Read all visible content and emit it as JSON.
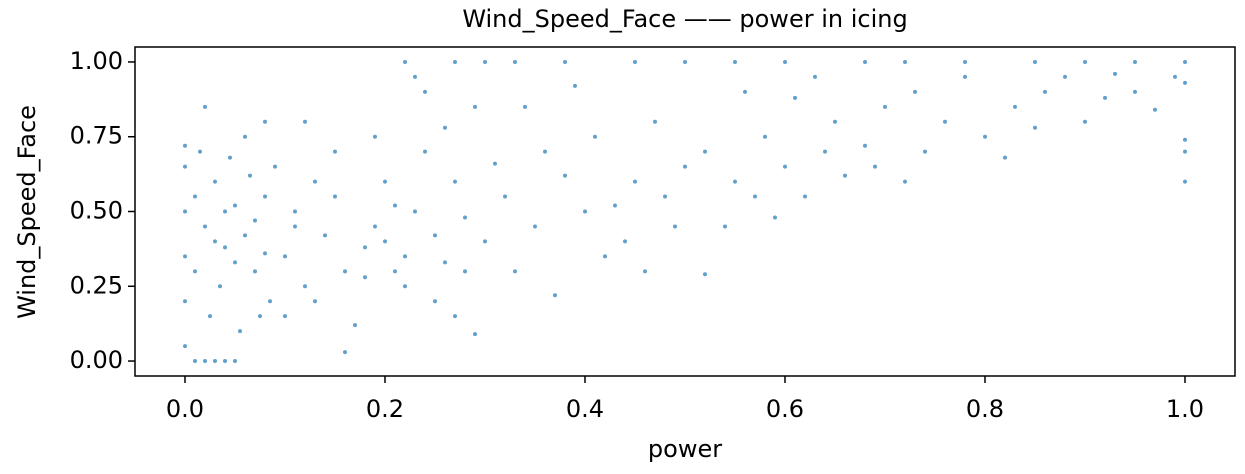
{
  "chart_data": {
    "type": "scatter",
    "title": "Wind_Speed_Face —— power in icing",
    "x_label": "power",
    "y_label": "Wind_Speed_Face",
    "color": "#1f77b4",
    "x": [
      0,
      0,
      0,
      0,
      0,
      0,
      0.01,
      0.02,
      0.03,
      0.04,
      0.05,
      0.01,
      0.02,
      0.03,
      0.04,
      0.05,
      0.06,
      0.07,
      0.08,
      0.085,
      0.015,
      0.025,
      0.035,
      0.045,
      0.055,
      0.065,
      0.075,
      0.08,
      0.02,
      0.06,
      0.01,
      0.03,
      0.05,
      0.07,
      0.04,
      0.08,
      0.1,
      0.11,
      0.12,
      0.13,
      0.1,
      0.14,
      0.15,
      0.12,
      0.16,
      0.09,
      0.11,
      0.13,
      0.15,
      0.17,
      0.16,
      0.18,
      0.2,
      0.22,
      0.19,
      0.21,
      0.23,
      0.25,
      0.2,
      0.24,
      0.22,
      0.26,
      0.28,
      0.18,
      0.27,
      0.29,
      0.23,
      0.26,
      0.3,
      0.21,
      0.25,
      0.27,
      0.29,
      0.19,
      0.24,
      0.28,
      0.32,
      0.35,
      0.38,
      0.4,
      0.33,
      0.36,
      0.42,
      0.45,
      0.48,
      0.34,
      0.37,
      0.41,
      0.44,
      0.47,
      0.5,
      0.39,
      0.46,
      0.43,
      0.31,
      0.49,
      0.52,
      0.52,
      0.55,
      0.58,
      0.6,
      0.62,
      0.65,
      0.68,
      0.7,
      0.72,
      0.56,
      0.63,
      0.66,
      0.74,
      0.54,
      0.59,
      0.61,
      0.69,
      0.73,
      0.57,
      0.64,
      0.76,
      0.8,
      0.83,
      0.86,
      0.9,
      0.78,
      0.82,
      0.88,
      0.92,
      0.95,
      0.97,
      0.85,
      0.93,
      0.99,
      1.0,
      1.0,
      1.0,
      1.0,
      0.27,
      0.3,
      0.33,
      0.45,
      0.5,
      0.55,
      0.6,
      0.68,
      0.72,
      0.78,
      0.85,
      0.9,
      0.95,
      1.0,
      0.22,
      0.38
    ],
    "values": [
      0.05,
      0.2,
      0.35,
      0.5,
      0.65,
      0.72,
      0,
      0,
      0,
      0,
      0,
      0.3,
      0.45,
      0.6,
      0.38,
      0.52,
      0.42,
      0.3,
      0.55,
      0.2,
      0.7,
      0.15,
      0.25,
      0.68,
      0.1,
      0.62,
      0.15,
      0.8,
      0.85,
      0.75,
      0.55,
      0.4,
      0.33,
      0.47,
      0.5,
      0.36,
      0.35,
      0.5,
      0.25,
      0.6,
      0.15,
      0.42,
      0.7,
      0.8,
      0.3,
      0.65,
      0.45,
      0.2,
      0.55,
      0.12,
      0.03,
      0.38,
      0.4,
      0.35,
      0.45,
      0.3,
      0.5,
      0.42,
      0.6,
      0.7,
      0.25,
      0.33,
      0.48,
      0.28,
      0.6,
      0.85,
      0.95,
      0.78,
      0.4,
      0.52,
      0.2,
      0.15,
      0.09,
      0.75,
      0.9,
      0.3,
      0.55,
      0.45,
      0.62,
      0.5,
      0.3,
      0.7,
      0.35,
      0.6,
      0.55,
      0.85,
      0.22,
      0.75,
      0.4,
      0.8,
      0.65,
      0.92,
      0.3,
      0.52,
      0.66,
      0.45,
      0.29,
      0.7,
      0.6,
      0.75,
      0.65,
      0.55,
      0.8,
      0.72,
      0.85,
      0.6,
      0.9,
      0.95,
      0.62,
      0.7,
      0.45,
      0.48,
      0.88,
      0.65,
      0.9,
      0.55,
      0.7,
      0.8,
      0.75,
      0.85,
      0.9,
      0.8,
      0.95,
      0.68,
      0.95,
      0.88,
      0.9,
      0.84,
      0.78,
      0.96,
      0.95,
      0.74,
      0.6,
      0.7,
      0.93,
      1,
      1,
      1,
      1,
      1,
      1,
      1,
      1,
      1,
      1,
      1,
      1,
      1,
      1,
      1,
      1
    ],
    "xlim": [
      -0.05,
      1.05
    ],
    "ylim": [
      -0.05,
      1.05
    ],
    "xticks": [
      {
        "value": 0,
        "label": "0.0"
      },
      0.2,
      0.4,
      0.6,
      0.8,
      {
        "value": 1,
        "label": "1.0"
      }
    ],
    "yticks": [
      {
        "value": 0,
        "label": "0.00"
      },
      0.25,
      {
        "value": 0.5,
        "label": "0.50"
      },
      0.75,
      {
        "value": 1,
        "label": "1.00"
      }
    ]
  }
}
